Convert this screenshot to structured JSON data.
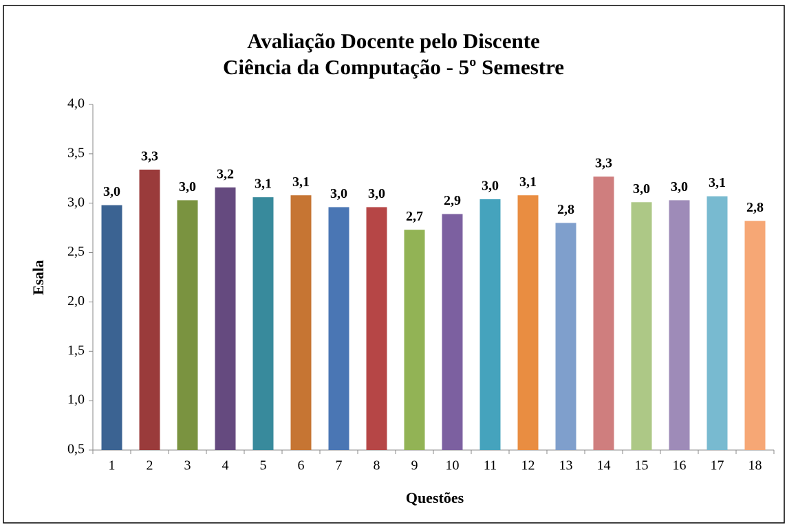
{
  "chart_data": {
    "type": "bar",
    "title": "Avaliação Docente pelo Discente",
    "subtitle": "Ciência da Computação - 5º Semestre",
    "x_label": "Questões",
    "y_label": "Esala",
    "categories": [
      "1",
      "2",
      "3",
      "4",
      "5",
      "6",
      "7",
      "8",
      "9",
      "10",
      "11",
      "12",
      "13",
      "14",
      "15",
      "16",
      "17",
      "18"
    ],
    "values": [
      2.98,
      3.34,
      3.03,
      3.16,
      3.06,
      3.08,
      2.96,
      2.96,
      2.73,
      2.89,
      3.04,
      3.08,
      2.8,
      3.27,
      3.01,
      3.03,
      3.07,
      2.82
    ],
    "value_labels": [
      "3,0",
      "3,3",
      "3,0",
      "3,2",
      "3,1",
      "3,1",
      "3,0",
      "3,0",
      "2,7",
      "2,9",
      "3,0",
      "3,1",
      "2,8",
      "3,3",
      "3,0",
      "3,0",
      "3,1",
      "2,8"
    ],
    "colors": [
      "#3b6392",
      "#9a3b3b",
      "#7a9340",
      "#654a7f",
      "#388a9c",
      "#c67533",
      "#4a76b4",
      "#b64646",
      "#92b355",
      "#7c60a0",
      "#45a3bd",
      "#e98d41",
      "#7f9fcc",
      "#cf7e7e",
      "#adc886",
      "#9e8bb8",
      "#78bad0",
      "#f6a775"
    ],
    "ylim": [
      0.5,
      4.0
    ],
    "yticks": [
      {
        "value": 0.5,
        "label": "0,5"
      },
      {
        "value": 1.0,
        "label": "1,0"
      },
      {
        "value": 1.5,
        "label": "1,5"
      },
      {
        "value": 2.0,
        "label": "2,0"
      },
      {
        "value": 2.5,
        "label": "2,5"
      },
      {
        "value": 3.0,
        "label": "3,0"
      },
      {
        "value": 3.5,
        "label": "3,5"
      },
      {
        "value": 4.0,
        "label": "4,0"
      }
    ],
    "grid": false
  }
}
